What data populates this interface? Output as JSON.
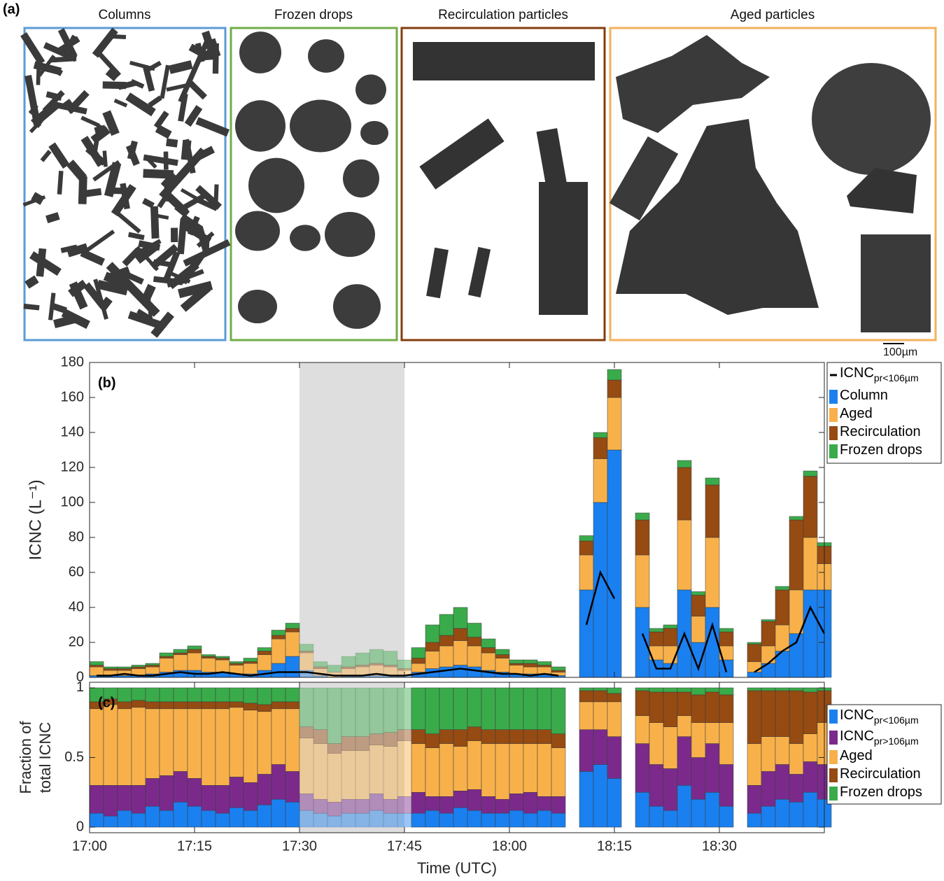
{
  "panel_a": {
    "label": "(a)",
    "titles": [
      "Columns",
      "Frozen drops",
      "Recirculation particles",
      "Aged particles"
    ],
    "scale_bar": "100µm"
  },
  "chart_data": [
    {
      "type": "bar",
      "stacked": true,
      "panel_label": "(b)",
      "ylabel": "ICNC (L⁻¹)",
      "legend": "outside-right",
      "xlim": [
        0,
        105
      ],
      "xticks": [
        0,
        15,
        30,
        45,
        60,
        75,
        90
      ],
      "ylim": [
        0,
        180
      ],
      "yticks": [
        0,
        20,
        40,
        60,
        80,
        100,
        120,
        140,
        160,
        180
      ],
      "highlight_x": [
        30,
        45
      ],
      "x": [
        0,
        2,
        4,
        6,
        8,
        10,
        12,
        14,
        16,
        18,
        20,
        22,
        24,
        26,
        28,
        30,
        32,
        34,
        36,
        38,
        40,
        42,
        44,
        46,
        48,
        50,
        52,
        54,
        56,
        58,
        60,
        62,
        64,
        66,
        68,
        70,
        72,
        74,
        76,
        78,
        80,
        82,
        84,
        86,
        88,
        90,
        92,
        94,
        96,
        98,
        100,
        102,
        104
      ],
      "series": [
        {
          "name": "ICNC",
          "subscript": "pr<106µm",
          "type": "line",
          "color": "#000000",
          "values": [
            1,
            1,
            2,
            1,
            1,
            2,
            3,
            2,
            2,
            3,
            2,
            1,
            2,
            3,
            3,
            3,
            2,
            1,
            1,
            1,
            2,
            1,
            1,
            2,
            3,
            4,
            5,
            4,
            3,
            2,
            2,
            1,
            2,
            1,
            null,
            30,
            60,
            45,
            null,
            25,
            5,
            5,
            25,
            5,
            30,
            3,
            null,
            3,
            8,
            15,
            20,
            40,
            25
          ]
        },
        {
          "name": "Column",
          "color": "#1a80f0",
          "values": [
            1,
            1,
            1,
            1,
            2,
            3,
            4,
            4,
            3,
            3,
            2,
            2,
            4,
            8,
            12,
            4,
            1,
            0,
            1,
            1,
            1,
            1,
            1,
            3,
            5,
            6,
            7,
            6,
            4,
            3,
            2,
            2,
            2,
            1,
            null,
            50,
            100,
            130,
            null,
            40,
            10,
            8,
            50,
            20,
            40,
            10,
            null,
            3,
            8,
            15,
            25,
            50,
            50
          ]
        },
        {
          "name": "Aged",
          "color": "#f8b14a",
          "values": [
            5,
            3,
            3,
            4,
            4,
            8,
            9,
            10,
            8,
            7,
            5,
            6,
            9,
            14,
            14,
            10,
            4,
            3,
            4,
            5,
            6,
            5,
            3,
            5,
            10,
            12,
            14,
            12,
            10,
            8,
            5,
            4,
            4,
            2,
            null,
            20,
            25,
            30,
            null,
            30,
            8,
            10,
            40,
            15,
            40,
            8,
            null,
            6,
            10,
            15,
            25,
            30,
            15
          ]
        },
        {
          "name": "Recirculation",
          "color": "#954b12",
          "values": [
            1,
            1,
            1,
            1,
            1,
            1,
            1,
            2,
            1,
            1,
            1,
            1,
            2,
            2,
            2,
            1,
            1,
            0,
            1,
            1,
            1,
            1,
            1,
            3,
            5,
            6,
            7,
            5,
            3,
            2,
            1,
            2,
            1,
            1,
            null,
            8,
            12,
            10,
            null,
            20,
            8,
            10,
            30,
            12,
            30,
            8,
            null,
            10,
            14,
            20,
            40,
            35,
            10
          ]
        },
        {
          "name": "Frozen drops",
          "color": "#3aab4a",
          "values": [
            2,
            1,
            1,
            1,
            1,
            2,
            2,
            2,
            1,
            1,
            1,
            2,
            2,
            3,
            3,
            4,
            3,
            4,
            6,
            7,
            8,
            8,
            5,
            6,
            10,
            12,
            12,
            8,
            5,
            3,
            2,
            2,
            2,
            2,
            null,
            3,
            3,
            6,
            null,
            4,
            2,
            2,
            4,
            2,
            4,
            2,
            null,
            1,
            1,
            2,
            2,
            3,
            2
          ]
        }
      ]
    },
    {
      "type": "bar",
      "stacked": true,
      "panel_label": "(c)",
      "ylabel": [
        "Fraction of",
        "total ICNC"
      ],
      "xlabel": "Time (UTC)",
      "legend": "outside-right",
      "xlim": [
        0,
        105
      ],
      "xticks": [
        {
          "value": 0,
          "label": "17:00"
        },
        {
          "value": 15,
          "label": "17:15"
        },
        {
          "value": 30,
          "label": "17:30"
        },
        {
          "value": 45,
          "label": "17:45"
        },
        {
          "value": 60,
          "label": "18:00"
        },
        {
          "value": 75,
          "label": "18:15"
        },
        {
          "value": 90,
          "label": "18:30"
        }
      ],
      "ylim": [
        -0.04,
        1.04
      ],
      "yticks": [
        0,
        0.5,
        1
      ],
      "highlight_x": [
        30,
        45
      ],
      "x": [
        0,
        2,
        4,
        6,
        8,
        10,
        12,
        14,
        16,
        18,
        20,
        22,
        24,
        26,
        28,
        30,
        32,
        34,
        36,
        38,
        40,
        42,
        44,
        46,
        48,
        50,
        52,
        54,
        56,
        58,
        60,
        62,
        64,
        66,
        68,
        70,
        72,
        74,
        76,
        78,
        80,
        82,
        84,
        86,
        88,
        90,
        92,
        94,
        96,
        98,
        100,
        102,
        104
      ],
      "series": [
        {
          "name": "ICNC",
          "subscript": "pr<106µm",
          "color": "#1a80f0",
          "values": [
            0.1,
            0.08,
            0.12,
            0.1,
            0.15,
            0.12,
            0.18,
            0.15,
            0.12,
            0.1,
            0.14,
            0.12,
            0.16,
            0.2,
            0.18,
            0.12,
            0.1,
            0.08,
            0.1,
            0.1,
            0.12,
            0.1,
            0.1,
            0.1,
            0.12,
            0.1,
            0.14,
            0.12,
            0.1,
            0.1,
            0.12,
            0.1,
            0.12,
            0.1,
            null,
            0.4,
            0.45,
            0.35,
            null,
            0.25,
            0.15,
            0.12,
            0.3,
            0.2,
            0.25,
            0.15,
            null,
            0.1,
            0.15,
            0.2,
            0.18,
            0.25,
            0.2
          ]
        },
        {
          "name": "ICNC",
          "subscript": "pr>106µm",
          "color": "#7b2a8c",
          "values": [
            0.2,
            0.22,
            0.18,
            0.2,
            0.2,
            0.25,
            0.22,
            0.2,
            0.18,
            0.2,
            0.22,
            0.2,
            0.22,
            0.25,
            0.22,
            0.12,
            0.1,
            0.1,
            0.1,
            0.1,
            0.12,
            0.1,
            0.12,
            0.15,
            0.1,
            0.12,
            0.12,
            0.15,
            0.12,
            0.1,
            0.12,
            0.15,
            0.1,
            0.12,
            null,
            0.3,
            0.25,
            0.3,
            null,
            0.35,
            0.3,
            0.3,
            0.35,
            0.3,
            0.35,
            0.3,
            null,
            0.2,
            0.25,
            0.25,
            0.2,
            0.22,
            0.25
          ]
        },
        {
          "name": "Aged",
          "color": "#f8b14a",
          "values": [
            0.55,
            0.58,
            0.55,
            0.56,
            0.5,
            0.48,
            0.45,
            0.5,
            0.55,
            0.55,
            0.5,
            0.52,
            0.45,
            0.4,
            0.45,
            0.4,
            0.4,
            0.35,
            0.35,
            0.35,
            0.35,
            0.38,
            0.4,
            0.35,
            0.35,
            0.38,
            0.32,
            0.35,
            0.38,
            0.4,
            0.36,
            0.35,
            0.38,
            0.35,
            null,
            0.2,
            0.2,
            0.25,
            null,
            0.2,
            0.3,
            0.3,
            0.15,
            0.25,
            0.15,
            0.3,
            null,
            0.3,
            0.25,
            0.2,
            0.22,
            0.2,
            0.3
          ]
        },
        {
          "name": "Recirculation",
          "color": "#954b12",
          "values": [
            0.05,
            0.04,
            0.05,
            0.05,
            0.05,
            0.05,
            0.05,
            0.05,
            0.05,
            0.05,
            0.04,
            0.05,
            0.05,
            0.05,
            0.05,
            0.08,
            0.1,
            0.07,
            0.1,
            0.1,
            0.08,
            0.1,
            0.08,
            0.1,
            0.1,
            0.1,
            0.12,
            0.1,
            0.1,
            0.1,
            0.1,
            0.1,
            0.1,
            0.1,
            null,
            0.08,
            0.08,
            0.06,
            null,
            0.18,
            0.22,
            0.25,
            0.17,
            0.2,
            0.22,
            0.2,
            null,
            0.38,
            0.33,
            0.33,
            0.38,
            0.3,
            0.23
          ]
        },
        {
          "name": "Frozen drops",
          "color": "#3aab4a",
          "values": [
            0.1,
            0.08,
            0.1,
            0.09,
            0.1,
            0.1,
            0.1,
            0.1,
            0.1,
            0.1,
            0.1,
            0.11,
            0.12,
            0.1,
            0.1,
            0.28,
            0.3,
            0.4,
            0.35,
            0.35,
            0.33,
            0.32,
            0.3,
            0.3,
            0.33,
            0.3,
            0.3,
            0.28,
            0.3,
            0.3,
            0.3,
            0.3,
            0.3,
            0.33,
            null,
            0.02,
            0.02,
            0.04,
            null,
            0.02,
            0.03,
            0.03,
            0.03,
            0.05,
            0.03,
            0.05,
            null,
            0.02,
            0.02,
            0.02,
            0.02,
            0.03,
            0.02
          ]
        }
      ]
    }
  ]
}
